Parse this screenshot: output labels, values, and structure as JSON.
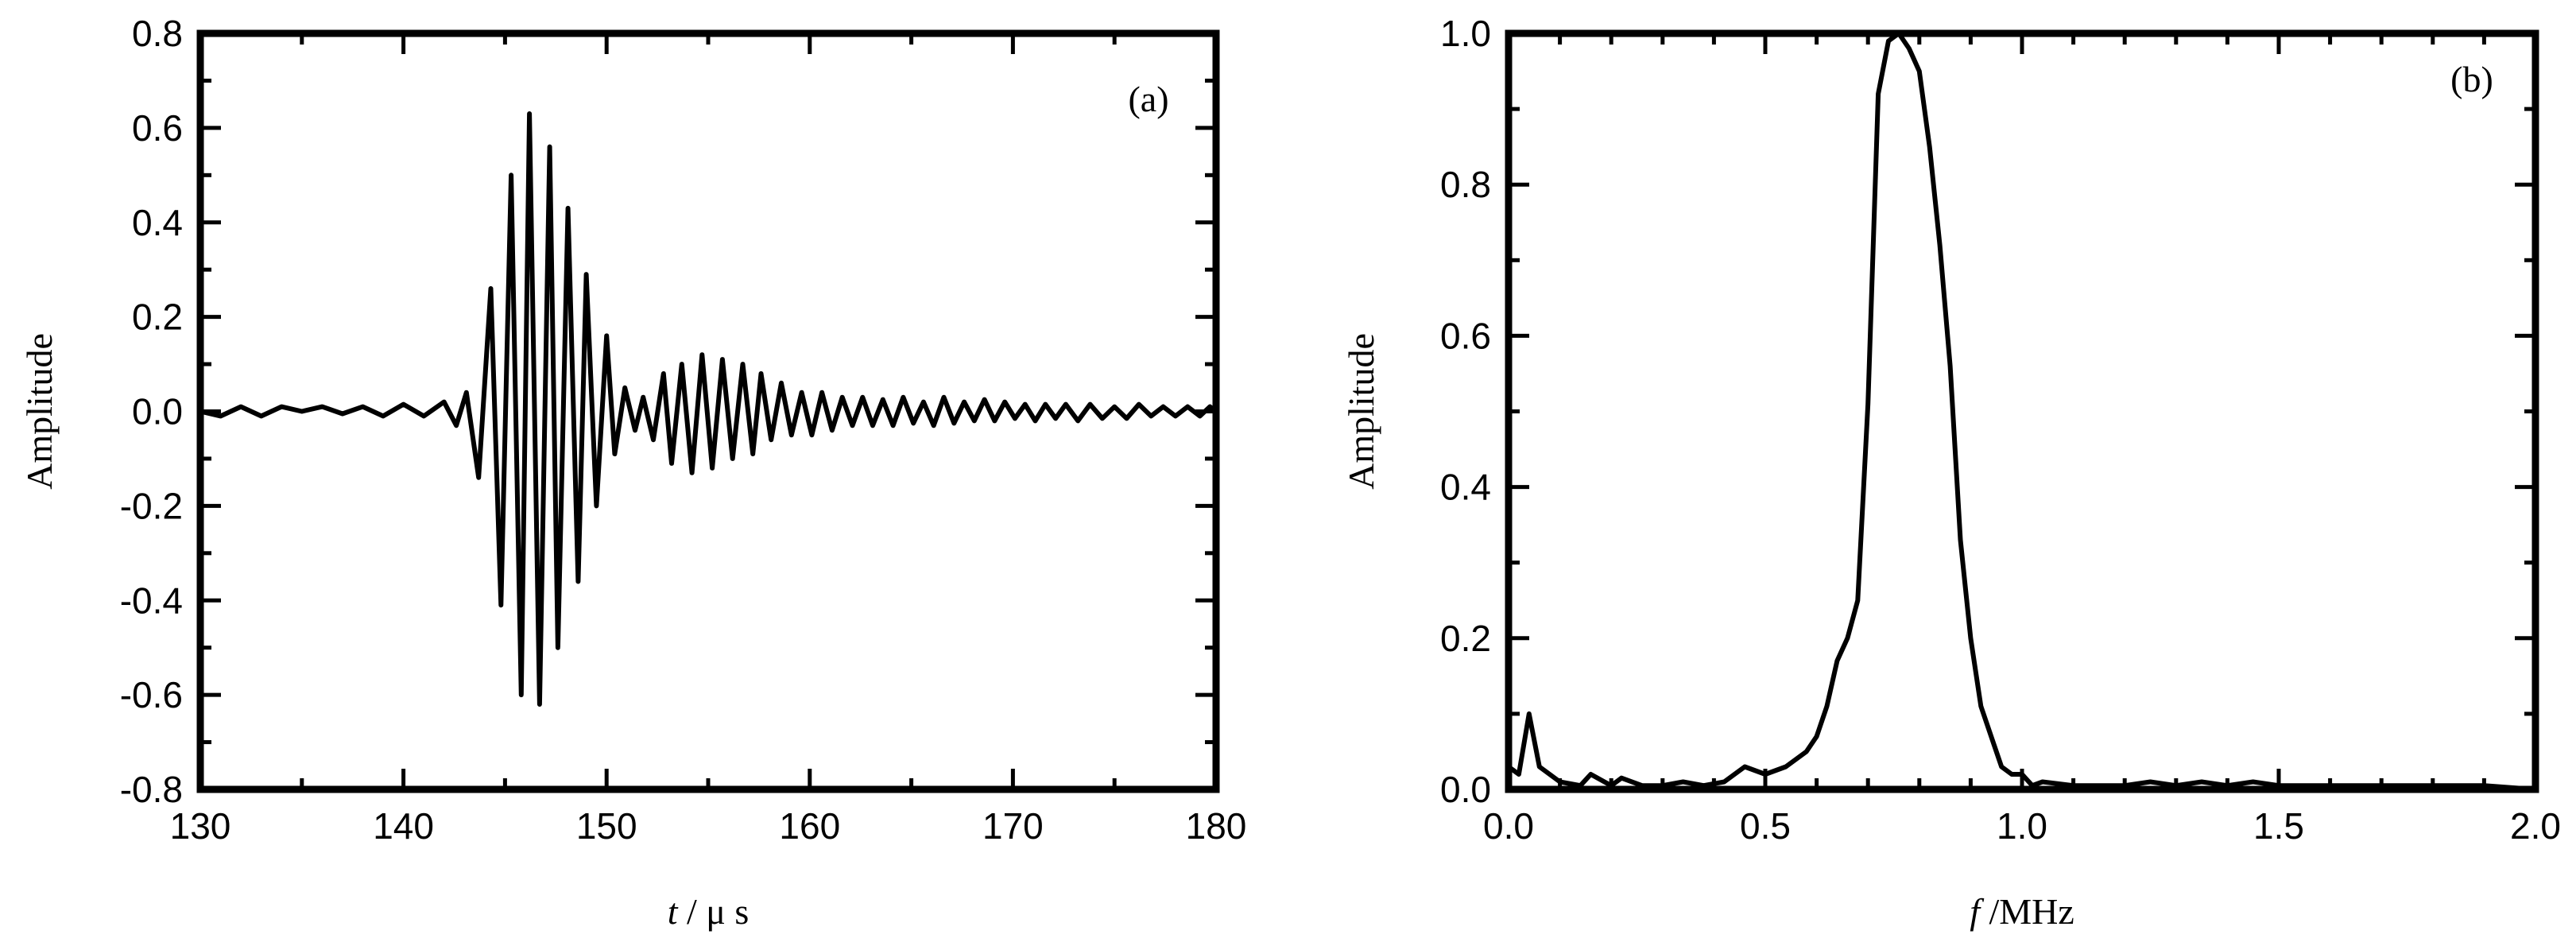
{
  "chart_data": [
    {
      "type": "line",
      "panel_label": "(a)",
      "xlabel_italic": "t",
      "xlabel_rest": " / μ s",
      "ylabel": "Amplitude",
      "xlim": [
        130,
        180
      ],
      "ylim": [
        -0.8,
        0.8
      ],
      "xticks": [
        130,
        140,
        150,
        160,
        170,
        180
      ],
      "xtick_labels": [
        "130",
        "140",
        "150",
        "160",
        "170",
        "180"
      ],
      "yticks": [
        -0.8,
        -0.6,
        -0.4,
        -0.2,
        0.0,
        0.2,
        0.4,
        0.6,
        0.8
      ],
      "ytick_labels": [
        "-0.8",
        "-0.6",
        "-0.4",
        "-0.2",
        "0.0",
        "0.2",
        "0.4",
        "0.6",
        "0.8"
      ],
      "x_minor_step": 5,
      "y_minor_step": 0.1,
      "series": [
        {
          "x": [
            130,
            131,
            132,
            133,
            134,
            135,
            136,
            137,
            138,
            139,
            140,
            141,
            142,
            142.6,
            143.1,
            143.7,
            144.3,
            144.8,
            145.3,
            145.8,
            146.2,
            146.7,
            147.2,
            147.6,
            148.1,
            148.6,
            149.0,
            149.5,
            150.0,
            150.4,
            150.9,
            151.4,
            151.8,
            152.3,
            152.8,
            153.2,
            153.7,
            154.2,
            154.7,
            155.2,
            155.7,
            156.2,
            156.7,
            157.2,
            157.6,
            158.1,
            158.6,
            159.1,
            159.6,
            160.1,
            160.6,
            161.1,
            161.6,
            162.1,
            162.6,
            163.1,
            163.6,
            164.1,
            164.6,
            165.1,
            165.6,
            166.1,
            166.6,
            167.1,
            167.6,
            168.1,
            168.6,
            169.1,
            169.6,
            170.1,
            170.6,
            171.1,
            171.6,
            172.1,
            172.6,
            173.2,
            173.8,
            174.4,
            175.0,
            175.6,
            176.2,
            176.8,
            177.4,
            178.0,
            178.6,
            179.2,
            179.7,
            180
          ],
          "y": [
            0.0,
            -0.01,
            0.01,
            -0.01,
            0.01,
            0.0,
            0.01,
            -0.005,
            0.01,
            -0.01,
            0.015,
            -0.01,
            0.02,
            -0.03,
            0.04,
            -0.14,
            0.26,
            -0.41,
            0.5,
            -0.6,
            0.63,
            -0.62,
            0.56,
            -0.5,
            0.43,
            -0.36,
            0.29,
            -0.2,
            0.16,
            -0.09,
            0.05,
            -0.04,
            0.03,
            -0.06,
            0.08,
            -0.11,
            0.1,
            -0.13,
            0.12,
            -0.12,
            0.11,
            -0.1,
            0.1,
            -0.09,
            0.08,
            -0.06,
            0.06,
            -0.05,
            0.04,
            -0.05,
            0.04,
            -0.04,
            0.03,
            -0.03,
            0.03,
            -0.03,
            0.025,
            -0.03,
            0.03,
            -0.025,
            0.02,
            -0.03,
            0.03,
            -0.025,
            0.02,
            -0.02,
            0.025,
            -0.02,
            0.02,
            -0.015,
            0.015,
            -0.02,
            0.015,
            -0.015,
            0.015,
            -0.02,
            0.015,
            -0.015,
            0.01,
            -0.015,
            0.015,
            -0.01,
            0.01,
            -0.01,
            0.01,
            -0.01,
            0.01,
            0.0
          ]
        }
      ]
    },
    {
      "type": "line",
      "panel_label": "(b)",
      "xlabel_italic": "f",
      "xlabel_rest": " /MHz",
      "ylabel": "Amplitude",
      "xlim": [
        0.0,
        2.0
      ],
      "ylim": [
        0.0,
        1.0
      ],
      "xticks": [
        0.0,
        0.5,
        1.0,
        1.5,
        2.0
      ],
      "xtick_labels": [
        "0.0",
        "0.5",
        "1.0",
        "1.5",
        "2.0"
      ],
      "yticks": [
        0.0,
        0.2,
        0.4,
        0.6,
        0.8,
        1.0
      ],
      "ytick_labels": [
        "0.0",
        "0.2",
        "0.4",
        "0.6",
        "0.8",
        "1.0"
      ],
      "x_minor_step": 0.1,
      "y_minor_step": 0.1,
      "series": [
        {
          "x": [
            0.0,
            0.02,
            0.04,
            0.06,
            0.1,
            0.14,
            0.16,
            0.2,
            0.22,
            0.26,
            0.3,
            0.34,
            0.38,
            0.42,
            0.46,
            0.5,
            0.54,
            0.58,
            0.6,
            0.62,
            0.64,
            0.66,
            0.68,
            0.7,
            0.72,
            0.74,
            0.76,
            0.78,
            0.8,
            0.82,
            0.84,
            0.86,
            0.88,
            0.9,
            0.92,
            0.94,
            0.96,
            0.98,
            1.0,
            1.02,
            1.04,
            1.1,
            1.2,
            1.25,
            1.3,
            1.35,
            1.4,
            1.45,
            1.5,
            1.6,
            1.7,
            1.8,
            1.9,
            2.0
          ],
          "y": [
            0.03,
            0.02,
            0.1,
            0.03,
            0.01,
            0.005,
            0.02,
            0.005,
            0.015,
            0.005,
            0.005,
            0.01,
            0.005,
            0.01,
            0.03,
            0.02,
            0.03,
            0.05,
            0.07,
            0.11,
            0.17,
            0.2,
            0.25,
            0.51,
            0.92,
            0.99,
            1.0,
            0.98,
            0.95,
            0.85,
            0.72,
            0.56,
            0.33,
            0.2,
            0.11,
            0.07,
            0.03,
            0.02,
            0.02,
            0.005,
            0.01,
            0.005,
            0.005,
            0.01,
            0.005,
            0.01,
            0.005,
            0.01,
            0.005,
            0.005,
            0.005,
            0.005,
            0.005,
            0.0
          ]
        }
      ]
    }
  ]
}
